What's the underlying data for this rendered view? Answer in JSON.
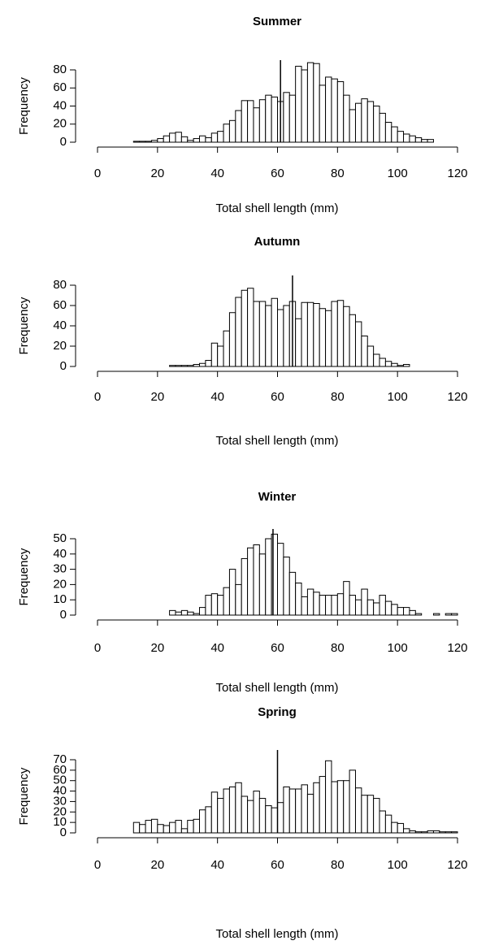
{
  "chart_data": [
    {
      "type": "histogram",
      "title": "Summer",
      "xlabel": "Total shell length (mm)",
      "ylabel": "Frequency",
      "bins": [
        12,
        14,
        16,
        18,
        20,
        22,
        24,
        26,
        28,
        30,
        32,
        34,
        36,
        38,
        40,
        42,
        44,
        46,
        48,
        50,
        52,
        54,
        56,
        58,
        60,
        62,
        64,
        66,
        68,
        70,
        72,
        74,
        76,
        78,
        80,
        82,
        84,
        86,
        88,
        90,
        92,
        94,
        96,
        98,
        100,
        102,
        104,
        106,
        108,
        110,
        112
      ],
      "counts": [
        1,
        1,
        1,
        2,
        4,
        7,
        10,
        11,
        6,
        2,
        4,
        7,
        5,
        10,
        12,
        20,
        24,
        35,
        46,
        46,
        38,
        47,
        52,
        50,
        45,
        55,
        52,
        84,
        80,
        88,
        87,
        63,
        72,
        70,
        67,
        52,
        36,
        43,
        48,
        45,
        40,
        32,
        22,
        17,
        12,
        9,
        7,
        5,
        3,
        3
      ],
      "vline": 61,
      "color": "#ffffff",
      "xlim": [
        0,
        120
      ],
      "xticks": [
        0,
        20,
        40,
        60,
        80,
        100,
        120
      ],
      "ylim": [
        0,
        80
      ],
      "yticks": [
        0,
        20,
        40,
        60,
        80
      ]
    },
    {
      "type": "histogram",
      "title": "Autumn",
      "xlabel": "Total shell length (mm)",
      "ylabel": "Frequency",
      "bins": [
        24,
        26,
        28,
        30,
        32,
        34,
        36,
        38,
        40,
        42,
        44,
        46,
        48,
        50,
        52,
        54,
        56,
        58,
        60,
        62,
        64,
        66,
        68,
        70,
        72,
        74,
        76,
        78,
        80,
        82,
        84,
        86,
        88,
        90,
        92,
        94,
        96,
        98,
        100,
        102,
        104
      ],
      "counts": [
        1,
        1,
        1,
        1,
        2,
        3,
        6,
        23,
        20,
        35,
        53,
        68,
        75,
        77,
        64,
        64,
        60,
        67,
        56,
        60,
        64,
        47,
        63,
        63,
        62,
        57,
        55,
        64,
        65,
        59,
        51,
        44,
        30,
        20,
        12,
        8,
        5,
        3,
        1,
        2
      ],
      "vline": 65,
      "color": "#ffffff",
      "xlim": [
        0,
        120
      ],
      "xticks": [
        0,
        20,
        40,
        60,
        80,
        100,
        120
      ],
      "ylim": [
        0,
        80
      ],
      "yticks": [
        0,
        20,
        40,
        60,
        80
      ]
    },
    {
      "type": "histogram",
      "title": "Winter",
      "xlabel": "Total shell length (mm)",
      "ylabel": "Frequency",
      "bins": [
        24,
        26,
        28,
        30,
        32,
        34,
        36,
        38,
        40,
        42,
        44,
        46,
        48,
        50,
        52,
        54,
        56,
        58,
        60,
        62,
        64,
        66,
        68,
        70,
        72,
        74,
        76,
        78,
        80,
        82,
        84,
        86,
        88,
        90,
        92,
        94,
        96,
        98,
        100,
        102,
        104,
        106,
        108,
        110,
        112,
        114,
        116,
        118,
        120
      ],
      "counts": [
        3,
        2,
        3,
        2,
        1,
        5,
        13,
        14,
        13,
        18,
        30,
        20,
        37,
        44,
        46,
        40,
        50,
        53,
        47,
        38,
        28,
        21,
        12,
        17,
        15,
        13,
        13,
        13,
        14,
        22,
        13,
        10,
        17,
        10,
        8,
        13,
        9,
        7,
        5,
        5,
        3,
        1,
        0,
        0,
        1,
        0,
        1,
        1
      ],
      "vline": 58.5,
      "color": "#ffffff",
      "xlim": [
        0,
        120
      ],
      "xticks": [
        0,
        20,
        40,
        60,
        80,
        100,
        120
      ],
      "ylim": [
        0,
        50
      ],
      "yticks": [
        0,
        10,
        20,
        30,
        40,
        50
      ]
    },
    {
      "type": "histogram",
      "title": "Spring",
      "xlabel": "Total shell length (mm)",
      "ylabel": "Frequency",
      "bins": [
        12,
        14,
        16,
        18,
        20,
        22,
        24,
        26,
        28,
        30,
        32,
        34,
        36,
        38,
        40,
        42,
        44,
        46,
        48,
        50,
        52,
        54,
        56,
        58,
        60,
        62,
        64,
        66,
        68,
        70,
        72,
        74,
        76,
        78,
        80,
        82,
        84,
        86,
        88,
        90,
        92,
        94,
        96,
        98,
        100,
        102,
        104,
        106,
        108,
        110,
        112,
        114,
        116,
        118,
        120
      ],
      "counts": [
        10,
        8,
        12,
        13,
        8,
        7,
        10,
        12,
        4,
        12,
        13,
        22,
        25,
        39,
        33,
        42,
        44,
        48,
        35,
        31,
        40,
        33,
        26,
        24,
        29,
        44,
        42,
        42,
        46,
        37,
        48,
        54,
        69,
        49,
        50,
        50,
        60,
        43,
        36,
        36,
        33,
        21,
        17,
        10,
        9,
        4,
        2,
        1,
        1,
        2,
        2,
        1,
        1,
        1
      ],
      "vline": 60,
      "color": "#ffffff",
      "xlim": [
        0,
        120
      ],
      "xticks": [
        0,
        20,
        40,
        60,
        80,
        100,
        120
      ],
      "ylim": [
        0,
        70
      ],
      "yticks": [
        0,
        10,
        20,
        30,
        40,
        50,
        60,
        70
      ]
    }
  ]
}
